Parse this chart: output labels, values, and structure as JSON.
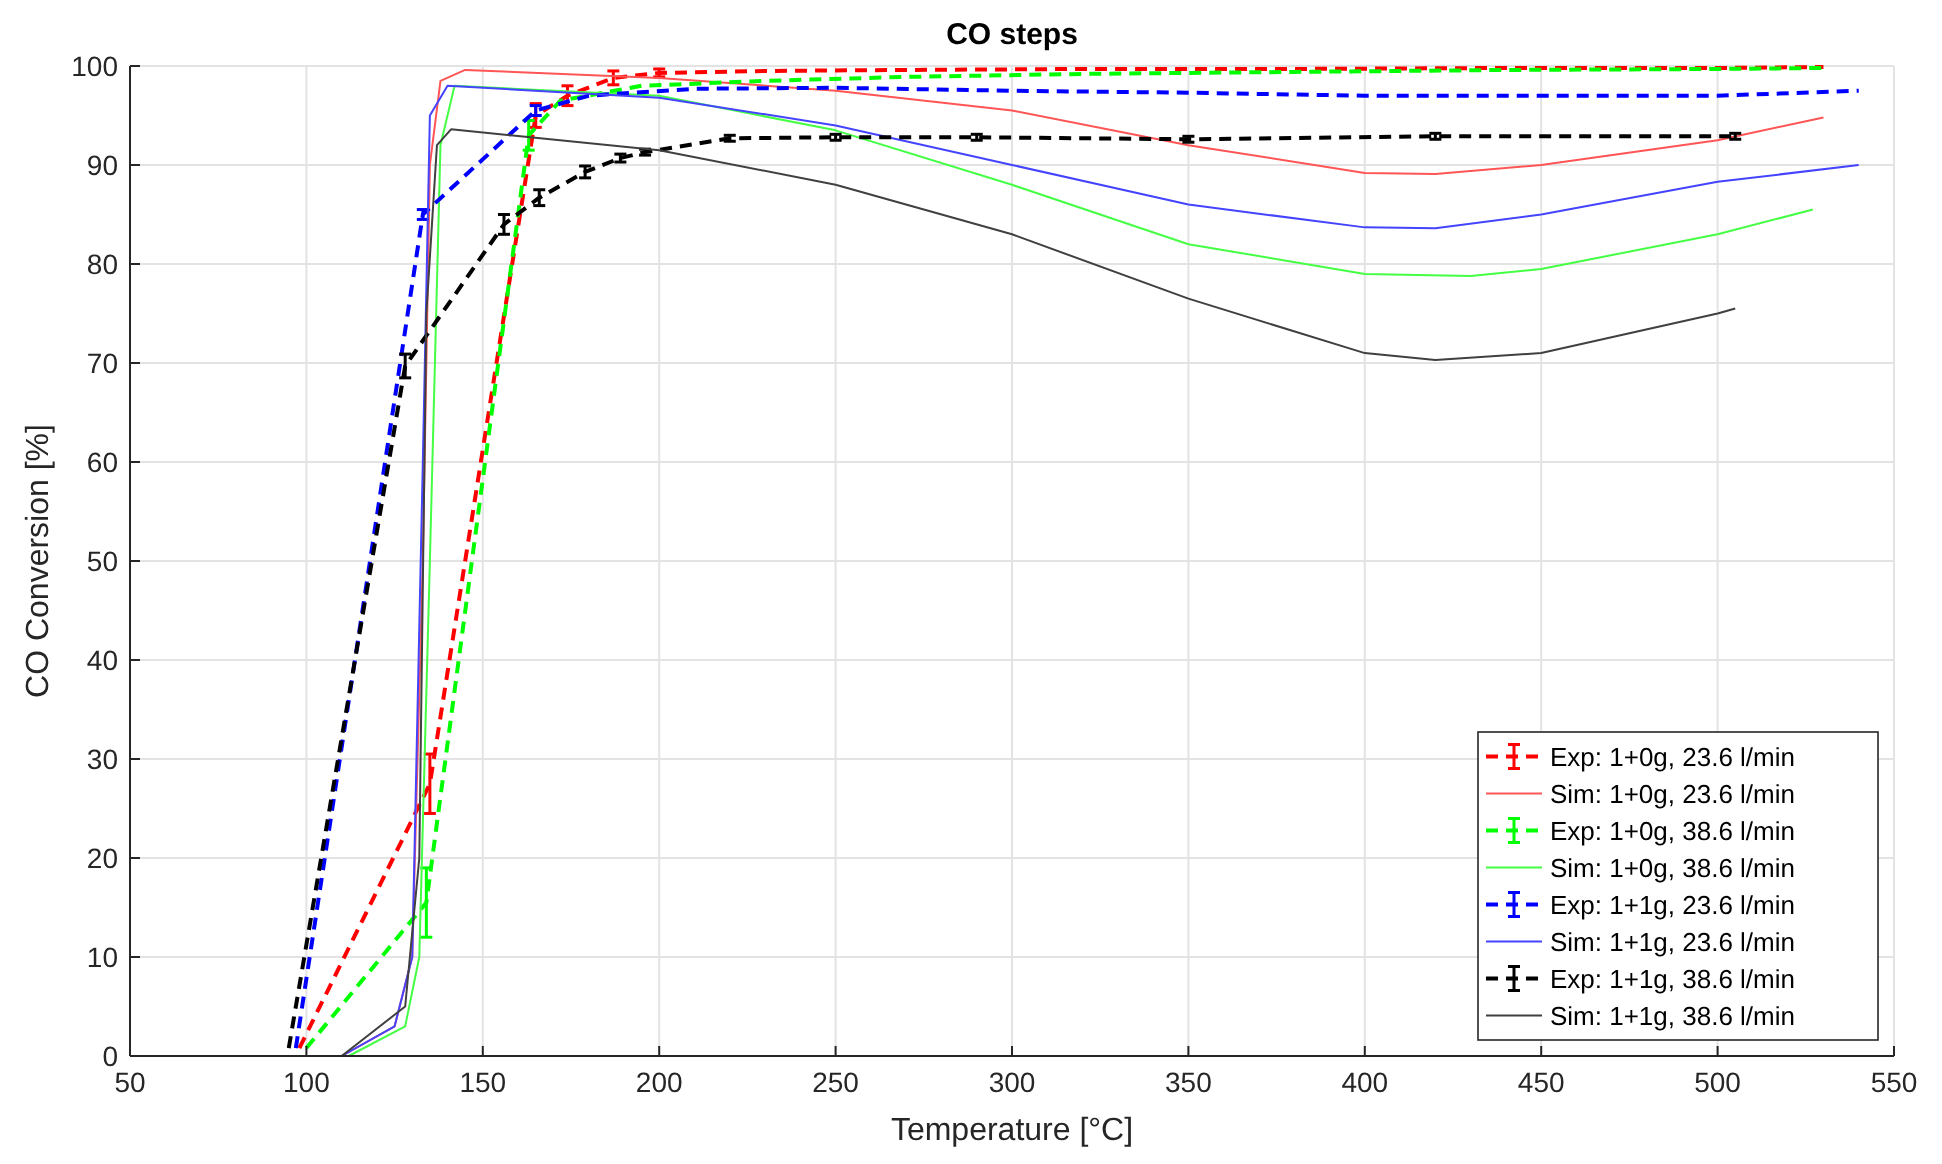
{
  "chart_data": {
    "type": "line",
    "title": "CO steps",
    "xlabel": "Temperature [°C]",
    "ylabel": "CO Conversion [%]",
    "xlim": [
      50,
      550
    ],
    "xticks": [
      50,
      100,
      150,
      200,
      250,
      300,
      350,
      400,
      450,
      500,
      550
    ],
    "ylim": [
      0,
      100
    ],
    "yticks": [
      0,
      10,
      20,
      30,
      40,
      50,
      60,
      70,
      80,
      90,
      100
    ],
    "grid": true,
    "legend": "bottom right",
    "marker": "none",
    "series": [
      {
        "name": "Exp: 1+0g, 23.6 l/min",
        "color": "#ff0000",
        "line_style": "dashed",
        "x": [
          98,
          135,
          165,
          174,
          187,
          200,
          230,
          270,
          320,
          380,
          440,
          500,
          530
        ],
        "values": [
          0.8,
          27.5,
          95,
          97,
          98.8,
          99.3,
          99.5,
          99.6,
          99.7,
          99.7,
          99.8,
          99.8,
          99.9
        ],
        "errors": [
          null,
          3,
          1.2,
          1,
          0.7,
          0.4,
          null,
          null,
          null,
          null,
          null,
          null,
          null
        ]
      },
      {
        "name": "Sim: 1+0g, 23.6 l/min",
        "color": "#ff5555",
        "line_style": "solid",
        "x": [
          110,
          125,
          130,
          133,
          135,
          138,
          145,
          200,
          250,
          300,
          350,
          400,
          420,
          450,
          500,
          530
        ],
        "values": [
          0,
          3,
          10,
          50,
          90,
          98.5,
          99.6,
          98.8,
          97.5,
          95.5,
          92,
          89.2,
          89.1,
          90,
          92.5,
          94.8
        ]
      },
      {
        "name": "Exp: 1+0g, 38.6 l/min",
        "color": "#00ff00",
        "line_style": "dashed",
        "x": [
          100,
          134,
          163,
          172,
          195,
          230,
          270,
          320,
          380,
          440,
          500,
          530
        ],
        "values": [
          0.8,
          15.5,
          93,
          96.5,
          98,
          98.5,
          98.9,
          99.2,
          99.4,
          99.6,
          99.7,
          99.8
        ],
        "errors": [
          null,
          3.5,
          1.5,
          null,
          null,
          null,
          null,
          null,
          null,
          null,
          null,
          null
        ]
      },
      {
        "name": "Sim: 1+0g, 38.6 l/min",
        "color": "#44ff44",
        "line_style": "solid",
        "x": [
          112,
          128,
          132,
          135,
          138,
          142,
          200,
          250,
          300,
          350,
          400,
          430,
          450,
          500,
          527
        ],
        "values": [
          0,
          3,
          10,
          50,
          92,
          98,
          97,
          93.5,
          88,
          82,
          79,
          78.8,
          79.5,
          83,
          85.5
        ]
      },
      {
        "name": "Exp: 1+1g, 23.6 l/min",
        "color": "#0000ff",
        "line_style": "dashed",
        "x": [
          97,
          133,
          165,
          180,
          210,
          250,
          300,
          350,
          400,
          450,
          500,
          540
        ],
        "values": [
          0.8,
          85,
          95.5,
          97,
          97.7,
          97.8,
          97.5,
          97.3,
          97,
          97,
          97,
          97.5
        ],
        "errors": [
          null,
          0.5,
          0.5,
          null,
          null,
          null,
          null,
          null,
          null,
          null,
          null,
          null
        ]
      },
      {
        "name": "Sim: 1+1g, 23.6 l/min",
        "color": "#4444ff",
        "line_style": "solid",
        "x": [
          110,
          125,
          130,
          133,
          135,
          140,
          200,
          250,
          300,
          350,
          400,
          420,
          450,
          500,
          540
        ],
        "values": [
          0,
          3,
          10,
          60,
          95,
          98,
          96.8,
          94,
          90,
          86,
          83.7,
          83.6,
          85,
          88.3,
          90
        ]
      },
      {
        "name": "Exp: 1+1g, 38.6 l/min",
        "color": "#000000",
        "line_style": "dashed",
        "x": [
          95,
          128,
          156,
          166,
          179,
          189,
          196,
          220,
          250,
          290,
          350,
          420,
          505
        ],
        "values": [
          0.8,
          69.7,
          84,
          86.7,
          89.3,
          90.7,
          91.3,
          92.7,
          92.8,
          92.8,
          92.6,
          92.9,
          92.9
        ],
        "errors": [
          null,
          1.2,
          1,
          0.8,
          0.6,
          0.4,
          0.3,
          0.3,
          0.3,
          0.3,
          0.3,
          0.3,
          0.3
        ]
      },
      {
        "name": "Sim: 1+1g, 38.6 l/min",
        "color": "#404040",
        "line_style": "solid",
        "x": [
          110,
          128,
          132,
          134,
          137,
          141,
          200,
          250,
          300,
          350,
          400,
          420,
          450,
          500,
          505
        ],
        "values": [
          0,
          5,
          20,
          75,
          92,
          93.6,
          91.5,
          88,
          83,
          76.5,
          71,
          70.3,
          71,
          75,
          75.5
        ]
      }
    ]
  }
}
